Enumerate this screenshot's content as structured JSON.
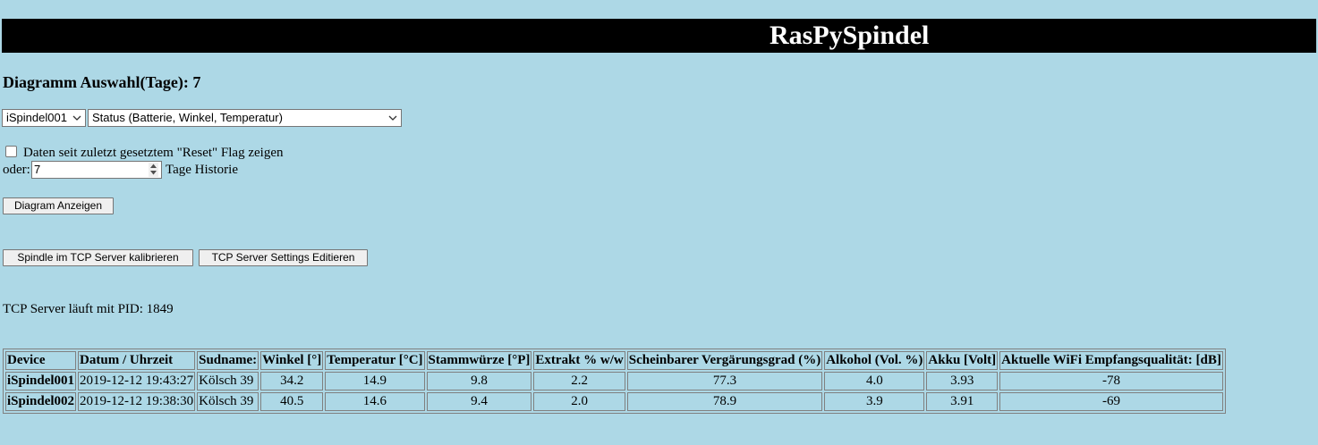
{
  "header": {
    "title": "RasPySpindel"
  },
  "diagram_selection": {
    "heading": "Diagramm Auswahl(Tage): 7"
  },
  "selects": {
    "device": {
      "value": "iSpindel001",
      "icon": "chevron-down-icon"
    },
    "diagram_type": {
      "value": "Status (Batterie, Winkel, Temperatur)",
      "icon": "chevron-down-icon"
    }
  },
  "reset_option": {
    "checked": false,
    "label": "Daten seit zuletzt gesetztem \"Reset\" Flag zeigen"
  },
  "history": {
    "oder_label": "oder:",
    "days_value": "7",
    "suffix_label": "Tage Historie"
  },
  "buttons": {
    "show_diagram": "Diagram Anzeigen",
    "calibrate": "Spindle im TCP Server kalibrieren",
    "edit_settings": "TCP Server Settings Editieren"
  },
  "status": {
    "pid_text": "TCP Server läuft mit PID: 1849"
  },
  "table": {
    "headers": [
      "Device",
      "Datum / Uhrzeit",
      "Sudname:",
      "Winkel [°]",
      "Temperatur [°C]",
      "Stammwürze [°P]",
      "Extrakt % w/w",
      "Scheinbarer Vergärungsgrad (%)",
      "Alkohol (Vol. %)",
      "Akku [Volt]",
      "Aktuelle WiFi Empfangsqualität: [dB]"
    ],
    "rows": [
      [
        "iSpindel001",
        "2019-12-12 19:43:27",
        "Kölsch 39",
        "34.2",
        "14.9",
        "9.8",
        "2.2",
        "77.3",
        "4.0",
        "3.93",
        "-78"
      ],
      [
        "iSpindel002",
        "2019-12-12 19:38:30",
        "Kölsch 39",
        "40.5",
        "14.6",
        "9.4",
        "2.0",
        "78.9",
        "3.9",
        "3.91",
        "-69"
      ]
    ]
  }
}
